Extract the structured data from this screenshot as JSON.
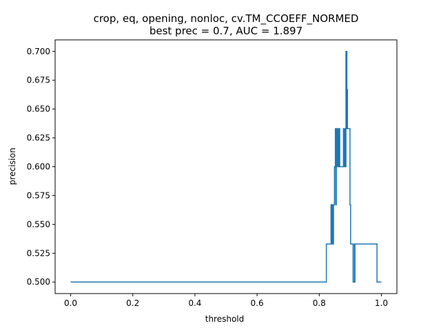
{
  "chart_data": {
    "type": "line",
    "title": [
      "crop, eq, opening, nonloc, cv.TM_CCOEFF_NORMED",
      "best prec = 0.7, AUC = 1.897"
    ],
    "xlabel": "threshold",
    "ylabel": "precision",
    "xlim": [
      -0.05,
      1.05
    ],
    "ylim": [
      0.49,
      0.71
    ],
    "xticks": [
      0.0,
      0.2,
      0.4,
      0.6,
      0.8,
      1.0
    ],
    "xtick_labels": [
      "0.0",
      "0.2",
      "0.4",
      "0.6",
      "0.8",
      "1.0"
    ],
    "yticks": [
      0.5,
      0.525,
      0.55,
      0.575,
      0.6,
      0.625,
      0.65,
      0.675,
      0.7
    ],
    "ytick_labels": [
      "0.500",
      "0.525",
      "0.550",
      "0.575",
      "0.600",
      "0.625",
      "0.650",
      "0.675",
      "0.700"
    ],
    "grid": false,
    "legend": "none",
    "line_color": "#1f77b4",
    "series": [
      {
        "x": [
          0.0,
          0.823,
          0.823,
          0.838,
          0.838,
          0.84,
          0.84,
          0.842,
          0.842,
          0.844,
          0.844,
          0.846,
          0.846,
          0.849,
          0.849,
          0.852,
          0.852,
          0.853,
          0.853,
          0.855,
          0.855,
          0.857,
          0.857,
          0.859,
          0.859,
          0.861,
          0.861,
          0.863,
          0.863,
          0.866,
          0.866,
          0.869,
          0.869,
          0.878,
          0.878,
          0.88,
          0.88,
          0.882,
          0.882,
          0.884,
          0.884,
          0.886,
          0.886,
          0.889,
          0.889,
          0.89,
          0.89,
          0.891,
          0.891,
          0.893,
          0.893,
          0.899,
          0.899,
          0.901,
          0.901,
          0.909,
          0.909,
          0.913,
          0.913,
          0.914,
          0.914,
          0.915,
          0.915,
          0.916,
          0.916,
          0.986,
          0.986,
          0.989,
          0.989,
          1.0
        ],
        "y": [
          0.5,
          0.5,
          0.533,
          0.533,
          0.567,
          0.567,
          0.533,
          0.533,
          0.567,
          0.567,
          0.533,
          0.533,
          0.567,
          0.567,
          0.6,
          0.6,
          0.633,
          0.633,
          0.567,
          0.567,
          0.633,
          0.633,
          0.6,
          0.6,
          0.633,
          0.633,
          0.6,
          0.6,
          0.633,
          0.633,
          0.6,
          0.6,
          0.6,
          0.6,
          0.633,
          0.633,
          0.6,
          0.6,
          0.633,
          0.633,
          0.6,
          0.6,
          0.7,
          0.7,
          0.633,
          0.633,
          0.667,
          0.667,
          0.633,
          0.633,
          0.633,
          0.633,
          0.567,
          0.567,
          0.533,
          0.533,
          0.5,
          0.5,
          0.533,
          0.533,
          0.5,
          0.5,
          0.533,
          0.533,
          0.533,
          0.533,
          0.5,
          0.5,
          0.5,
          0.5
        ]
      }
    ]
  }
}
